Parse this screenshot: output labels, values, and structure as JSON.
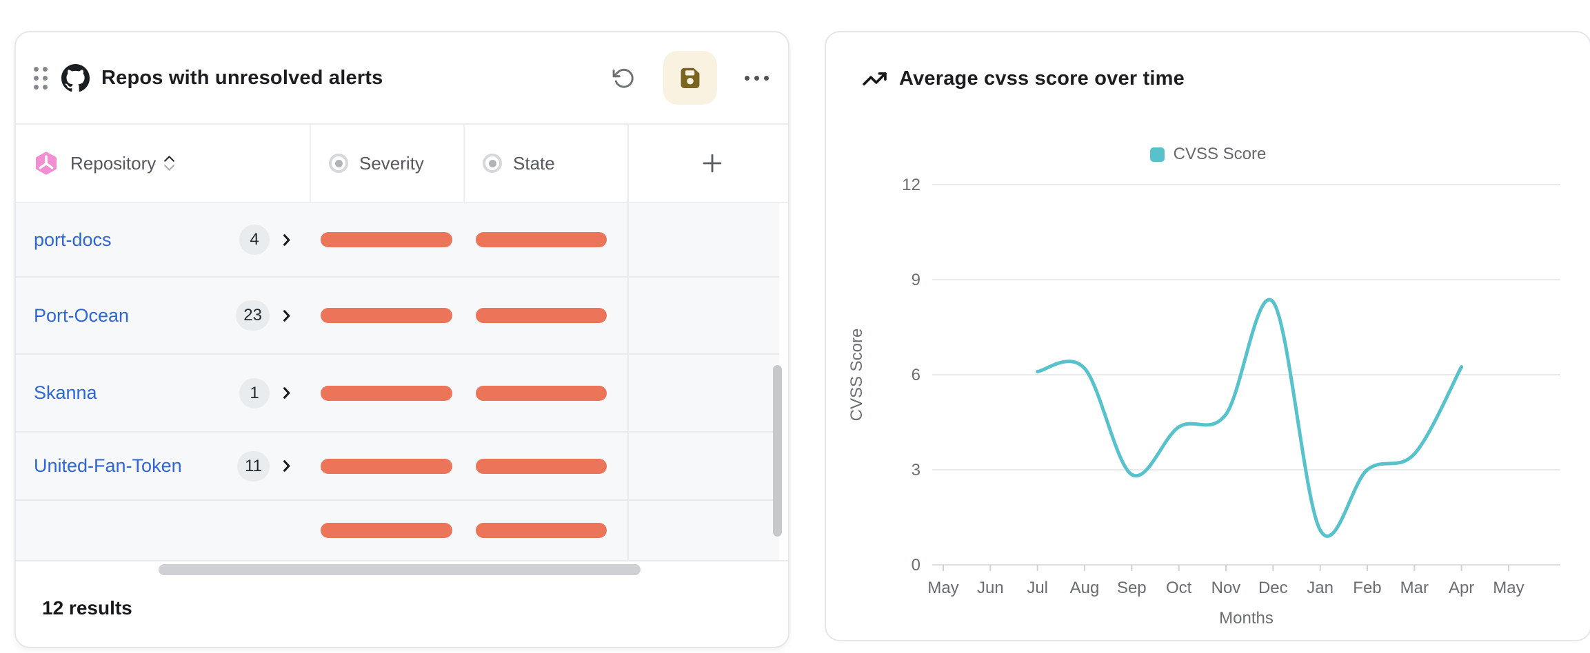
{
  "colors": {
    "accent_blue": "#2e66d9",
    "bar": "#ec7458",
    "badge_bg": "#e9ecee",
    "save_bg": "#faf2e1",
    "save_icon": "#7a6520",
    "teal": "#58c2cc"
  },
  "left_panel": {
    "title": "Repos with unresolved alerts",
    "columns": {
      "repository": "Repository",
      "severity": "Severity",
      "state": "State"
    },
    "rows": [
      {
        "repository": "port-docs",
        "alert_count": "4"
      },
      {
        "repository": "Port-Ocean",
        "alert_count": "23"
      },
      {
        "repository": "Skanna",
        "alert_count": "1"
      },
      {
        "repository": "United-Fan-Token",
        "alert_count": "11"
      },
      {
        "repository": "",
        "alert_count": ""
      }
    ],
    "results": "12 results"
  },
  "right_panel": {
    "title": "Average cvss score over time"
  },
  "chart_data": {
    "type": "line",
    "title": "Average cvss score over time",
    "categories": [
      "May",
      "Jun",
      "Jul",
      "Aug",
      "Sep",
      "Oct",
      "Nov",
      "Dec",
      "Jan",
      "Feb",
      "Mar",
      "Apr",
      "May"
    ],
    "series": [
      {
        "name": "CVSS Score",
        "color": "#58c2cc",
        "values": [
          null,
          null,
          6.1,
          6.2,
          2.85,
          4.35,
          4.75,
          8.3,
          1.1,
          3.0,
          3.5,
          6.25,
          null
        ]
      }
    ],
    "xlabel": "Months",
    "ylabel": "CVSS Score",
    "ylim": [
      0,
      12
    ],
    "yticks": [
      0,
      3,
      6,
      9,
      12
    ],
    "grid": true,
    "legend_position": "top"
  }
}
